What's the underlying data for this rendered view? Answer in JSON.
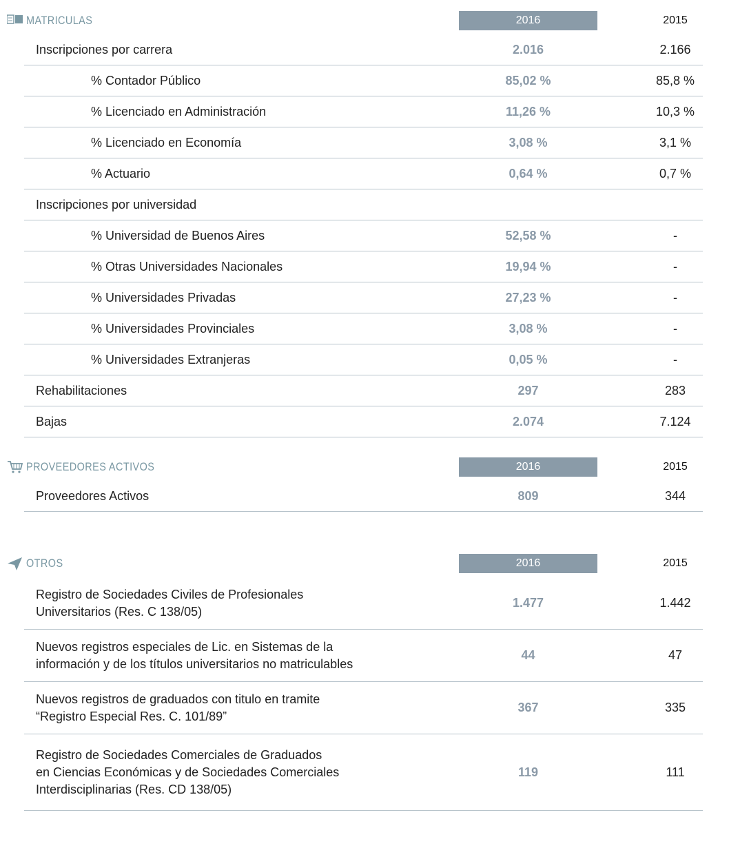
{
  "sections": [
    {
      "title": "MATRICULAS",
      "columns": [
        "2016",
        "2015"
      ],
      "rows": [
        {
          "label": [
            "Inscripciones por carrera"
          ],
          "values": [
            "2.016",
            "2.166"
          ],
          "items": [
            {
              "label": [
                "% Contador Público"
              ],
              "values": [
                "85,02 %",
                "85,8 %"
              ]
            },
            {
              "label": [
                "% Licenciado en Administración"
              ],
              "values": [
                "11,26 %",
                "10,3 %"
              ]
            },
            {
              "label": [
                "% Licenciado en Economía"
              ],
              "values": [
                "3,08 %",
                "3,1 %"
              ]
            },
            {
              "label": [
                "% Actuario"
              ],
              "values": [
                "0,64 %",
                "0,7 %"
              ]
            }
          ]
        },
        {
          "label": [
            "Inscripciones por universidad"
          ],
          "items": [
            {
              "label": [
                "% Universidad de Buenos Aires"
              ],
              "values": [
                "52,58 %",
                "-"
              ]
            },
            {
              "label": [
                "% Otras Universidades Nacionales"
              ],
              "values": [
                "19,94 %",
                "-"
              ]
            },
            {
              "label": [
                "% Universidades Privadas"
              ],
              "values": [
                "27,23 %",
                "-"
              ]
            },
            {
              "label": [
                "% Universidades Provinciales"
              ],
              "values": [
                "3,08 %",
                "-"
              ]
            },
            {
              "label": [
                "% Universidades Extranjeras"
              ],
              "values": [
                "0,05 %",
                "-"
              ]
            }
          ]
        },
        {
          "label": [
            "Rehabilitaciones"
          ],
          "values": [
            "297",
            "283"
          ]
        },
        {
          "label": [
            "Bajas"
          ],
          "values": [
            "2.074",
            "7.124"
          ]
        }
      ]
    },
    {
      "title": "PROVEEDORES ACTIVOS",
      "columns": [
        "2016",
        "2015"
      ],
      "rows": [
        {
          "label": [
            "Proveedores Activos"
          ],
          "values": [
            "809",
            "344"
          ]
        }
      ]
    },
    {
      "title": "OTROS",
      "columns": [
        "2016",
        "2015"
      ],
      "rows": [
        {
          "label": [
            "Registro de Sociedades Civiles de Profesionales",
            "Universitarios (Res. C 138/05)"
          ],
          "values": [
            "1.477",
            "1.442"
          ]
        },
        {
          "label": [
            "Nuevos registros especiales de Lic. en Sistemas de la",
            "información y de los títulos universitarios no matriculables"
          ],
          "values": [
            "44",
            "47"
          ]
        },
        {
          "label": [
            "Nuevos registros de graduados con titulo en tramite",
            "“Registro Especial Res. C. 101/89”"
          ],
          "values": [
            "367",
            "335"
          ]
        },
        {
          "label": [
            "Registro de Sociedades Comerciales de Graduados",
            "en Ciencias Económicas y de Sociedades Comerciales",
            "Interdisciplinarias (Res. CD 138/05)"
          ],
          "values": [
            "119",
            "111"
          ]
        }
      ]
    }
  ]
}
